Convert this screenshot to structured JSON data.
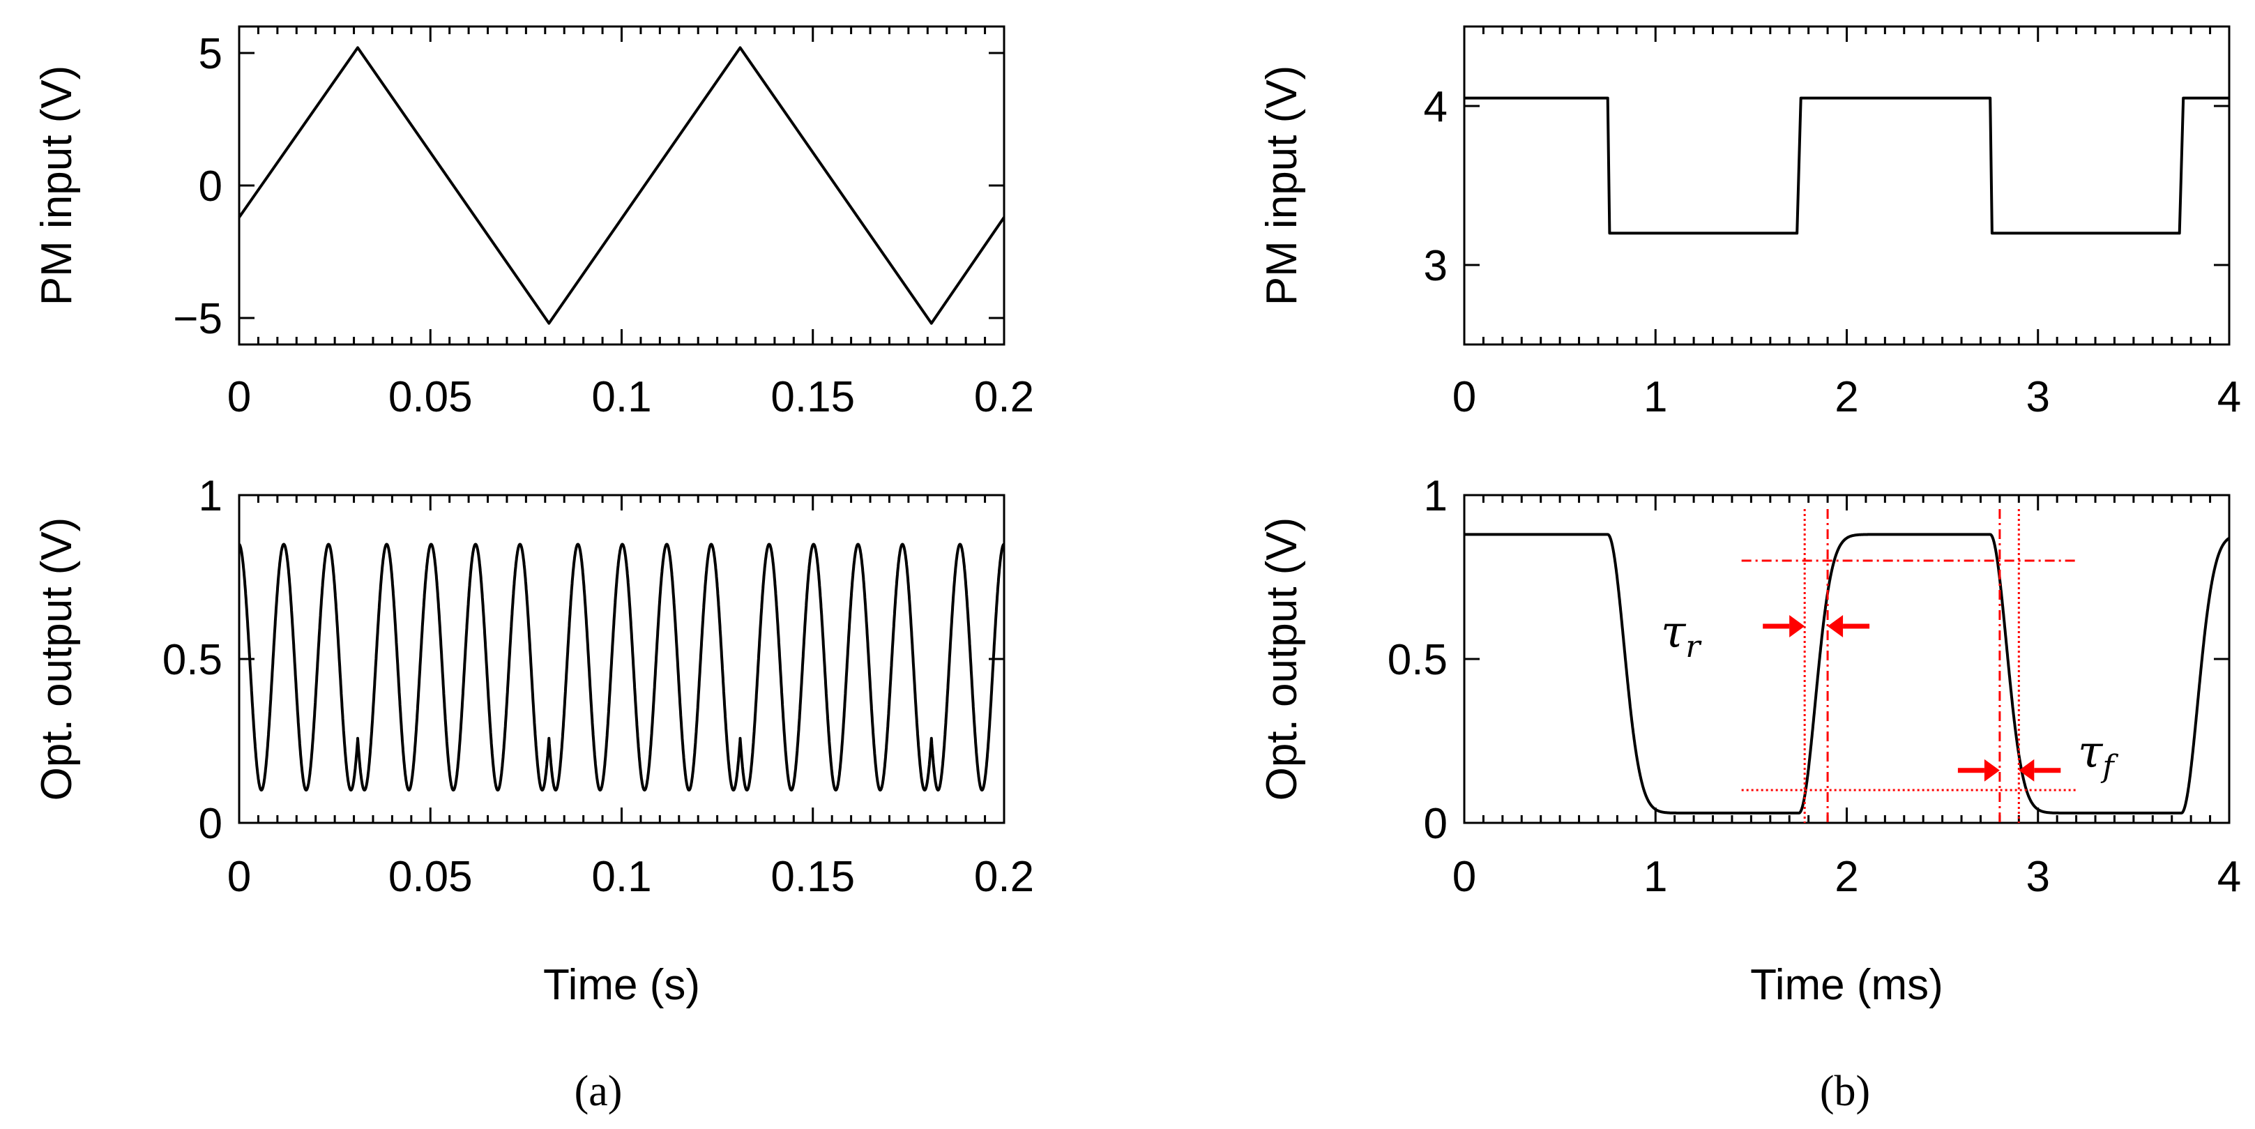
{
  "chart_data": [
    {
      "id": "a-top",
      "type": "line",
      "xlabel": "",
      "ylabel": "PM input (V)",
      "xlim": [
        0,
        0.2
      ],
      "ylim": [
        -6,
        6
      ],
      "xticks": [
        0,
        0.05,
        0.1,
        0.15,
        0.2
      ],
      "xtick_labels": [
        "0",
        "0.05",
        "0.1",
        "0.15",
        "0.2"
      ],
      "yticks": [
        -5,
        0,
        5
      ],
      "ytick_labels": [
        "−5",
        "0",
        "5"
      ],
      "series": [
        {
          "name": "triangle wave",
          "x": [
            0,
            0.031,
            0.081,
            0.131,
            0.181,
            0.2
          ],
          "y": [
            -1.2,
            5.2,
            -5.2,
            5.2,
            -5.2,
            -1.2
          ]
        }
      ]
    },
    {
      "id": "a-bottom",
      "type": "line",
      "xlabel": "Time (s)",
      "ylabel": "Opt. output (V)",
      "xlim": [
        0,
        0.2
      ],
      "ylim": [
        0,
        1
      ],
      "xticks": [
        0,
        0.05,
        0.1,
        0.15,
        0.2
      ],
      "xtick_labels": [
        "0",
        "0.05",
        "0.1",
        "0.15",
        "0.2"
      ],
      "yticks": [
        0,
        0.5,
        1
      ],
      "ytick_labels": [
        "0",
        "0.5",
        "1"
      ],
      "series": [
        {
          "name": "interference output",
          "model": "0.475 - 0.375*cos(2.6*PM(t))",
          "amplitude_range": [
            0.1,
            0.85
          ]
        }
      ]
    },
    {
      "id": "b-top",
      "type": "line",
      "xlabel": "",
      "ylabel": "PM input (V)",
      "xlim": [
        0,
        4
      ],
      "ylim": [
        2.5,
        4.5
      ],
      "xticks": [
        0,
        1,
        2,
        3,
        4
      ],
      "xtick_labels": [
        "0",
        "1",
        "2",
        "3",
        "4"
      ],
      "yticks": [
        3,
        4
      ],
      "ytick_labels": [
        "3",
        "4"
      ],
      "series": [
        {
          "name": "square wave",
          "x": [
            0,
            0.75,
            0.76,
            1.74,
            1.76,
            2.75,
            2.76,
            3.74,
            3.76,
            4.0
          ],
          "y": [
            4.05,
            4.05,
            3.2,
            3.2,
            4.05,
            4.05,
            3.2,
            3.2,
            4.05,
            4.05
          ]
        }
      ]
    },
    {
      "id": "b-bottom",
      "type": "line",
      "xlabel": "Time (ms)",
      "ylabel": "Opt. output (V)",
      "xlim": [
        0,
        4
      ],
      "ylim": [
        0,
        1
      ],
      "xticks": [
        0,
        1,
        2,
        3,
        4
      ],
      "xtick_labels": [
        "0",
        "1",
        "2",
        "3",
        "4"
      ],
      "yticks": [
        0,
        0.5,
        1
      ],
      "ytick_labels": [
        "0",
        "0.5",
        "1"
      ],
      "series": [
        {
          "name": "switching response",
          "high": 0.88,
          "low": 0.03,
          "transitions_ms": [
            0.75,
            1.75,
            2.75,
            3.75
          ]
        }
      ],
      "annotations": [
        {
          "text": "τ",
          "subscript": "r",
          "label": "rise time",
          "x_range": [
            1.78,
            1.9
          ]
        },
        {
          "text": "τ",
          "subscript": "f",
          "label": "fall time",
          "x_range": [
            2.8,
            2.9
          ]
        }
      ]
    }
  ],
  "captions": {
    "a": "(a)",
    "b": "(b)"
  },
  "colors": {
    "curve": "#000000",
    "annotation": "#ff0000",
    "frame": "#000000"
  }
}
